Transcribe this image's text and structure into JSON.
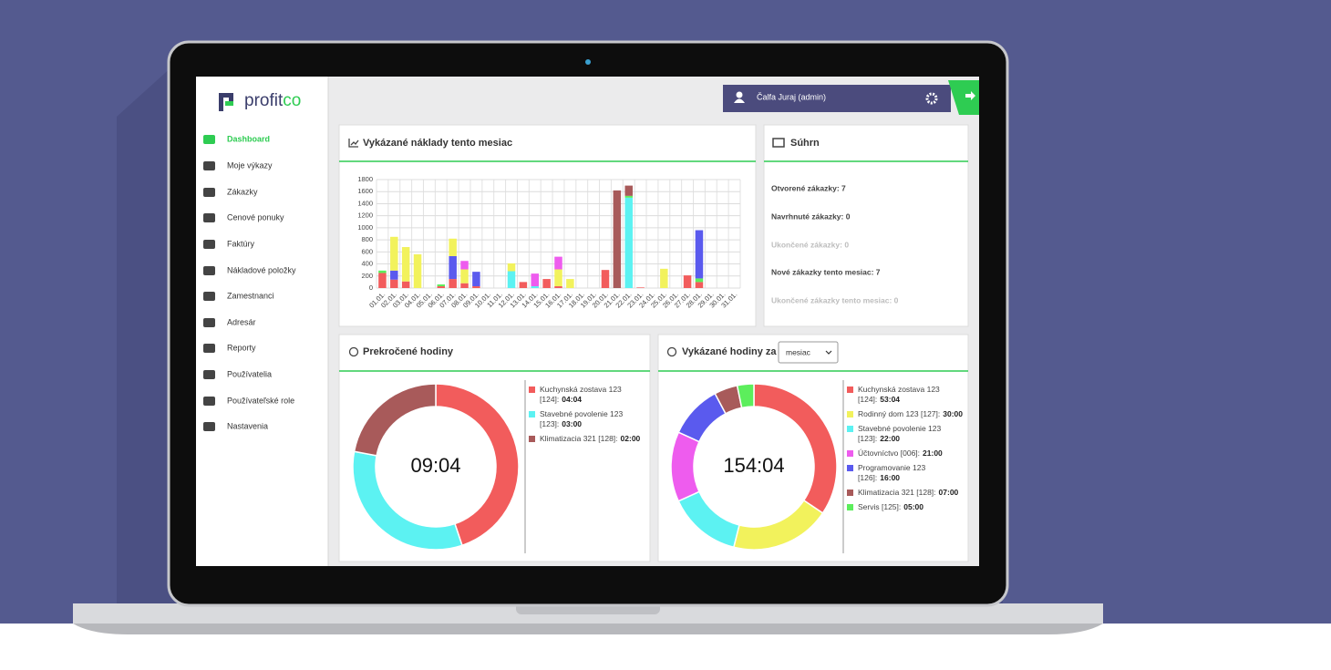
{
  "logo": {
    "brand": "profit",
    "accent": "co"
  },
  "sidebar": {
    "active": 0,
    "items": [
      "Dashboard",
      "Moje výkazy",
      "Zákazky",
      "Cenové ponuky",
      "Faktúry",
      "Nákladové položky",
      "Zamestnanci",
      "Adresár",
      "Reporty",
      "Používatelia",
      "Používateľské role",
      "Nastavenia"
    ]
  },
  "header": {
    "user": "Čalfa Juraj (admin)"
  },
  "summary": {
    "title": "Súhrn",
    "items": [
      {
        "text": "Otvorené zákazky: 7",
        "muted": false
      },
      {
        "text": "Navrhnuté zákazky: 0",
        "muted": false
      },
      {
        "text": "Ukončené zákazky: 0",
        "muted": true
      },
      {
        "text": "Nové zákazky tento mesiac: 7",
        "muted": false
      },
      {
        "text": "Ukončené zákazky tento mesiac: 0",
        "muted": true
      }
    ]
  },
  "chart_data": [
    {
      "type": "stacked-bar",
      "title": "Vykázané náklady tento mesiac",
      "grid": true,
      "categories": [
        "01.01.",
        "02.01.",
        "03.01.",
        "04.01.",
        "05.01.",
        "06.01.",
        "07.01.",
        "08.01.",
        "09.01.",
        "10.01.",
        "11.01.",
        "12.01.",
        "13.01.",
        "14.01.",
        "15.01.",
        "16.01.",
        "17.01.",
        "18.01.",
        "19.01.",
        "20.01.",
        "21.01.",
        "22.01.",
        "23.01.",
        "24.01.",
        "25.01.",
        "26.01.",
        "27.01.",
        "28.01.",
        "29.01.",
        "30.01.",
        "31.01."
      ],
      "ylim": [
        0,
        1800
      ],
      "yticks": [
        0,
        200,
        400,
        600,
        800,
        1000,
        1200,
        1400,
        1600,
        1800
      ],
      "series": [
        {
          "color": "#f25c5c",
          "values": [
            250,
            140,
            110,
            0,
            0,
            30,
            150,
            80,
            30,
            0,
            0,
            0,
            100,
            0,
            150,
            30,
            0,
            0,
            0,
            300,
            0,
            0,
            10,
            0,
            0,
            0,
            210,
            100,
            0,
            0,
            0
          ]
        },
        {
          "color": "#5cf2f2",
          "values": [
            0,
            0,
            0,
            0,
            0,
            0,
            0,
            0,
            0,
            0,
            0,
            280,
            0,
            30,
            0,
            0,
            0,
            0,
            0,
            0,
            0,
            1500,
            0,
            0,
            0,
            0,
            0,
            0,
            0,
            0,
            0
          ]
        },
        {
          "color": "#5cee5c",
          "values": [
            40,
            0,
            0,
            0,
            0,
            30,
            0,
            0,
            0,
            0,
            0,
            0,
            0,
            0,
            0,
            0,
            0,
            0,
            0,
            0,
            0,
            30,
            0,
            0,
            0,
            0,
            0,
            60,
            0,
            0,
            0
          ]
        },
        {
          "color": "#5a5aee",
          "values": [
            0,
            150,
            0,
            0,
            0,
            0,
            380,
            0,
            240,
            0,
            0,
            0,
            0,
            0,
            0,
            0,
            0,
            0,
            0,
            0,
            0,
            0,
            0,
            0,
            0,
            0,
            0,
            800,
            0,
            0,
            0
          ]
        },
        {
          "color": "#f2f25c",
          "values": [
            0,
            560,
            570,
            560,
            0,
            0,
            290,
            230,
            0,
            0,
            0,
            130,
            0,
            0,
            0,
            280,
            150,
            0,
            0,
            0,
            0,
            0,
            0,
            0,
            320,
            0,
            0,
            0,
            0,
            0,
            0
          ]
        },
        {
          "color": "#ee5cee",
          "values": [
            0,
            0,
            0,
            0,
            0,
            0,
            0,
            140,
            0,
            0,
            0,
            0,
            0,
            210,
            0,
            210,
            0,
            0,
            0,
            0,
            0,
            0,
            0,
            0,
            0,
            0,
            0,
            0,
            0,
            0,
            0
          ]
        },
        {
          "color": "#a85a5a",
          "values": [
            0,
            0,
            0,
            0,
            0,
            0,
            0,
            0,
            0,
            0,
            0,
            0,
            0,
            0,
            0,
            0,
            0,
            0,
            0,
            0,
            1620,
            170,
            0,
            0,
            0,
            0,
            0,
            0,
            0,
            0,
            0
          ]
        }
      ]
    },
    {
      "type": "donut",
      "title": "Prekročené hodiny",
      "center_label": "09:04",
      "categories": [
        "Kuchynská zostava 123 [124]:",
        "Stavebné povolenie 123 [123]:",
        "Klimatizacia 321 [128]:"
      ],
      "values": [
        244,
        180,
        120
      ],
      "value_labels": [
        "04:04",
        "03:00",
        "02:00"
      ],
      "colors": [
        "#f25c5c",
        "#5cf2f2",
        "#a85a5a"
      ]
    },
    {
      "type": "donut",
      "title": "Vykázané hodiny za",
      "select_value": "mesiac",
      "center_label": "154:04",
      "categories": [
        "Kuchynská zostava 123 [124]:",
        "Rodinný dom 123 [127]:",
        "Stavebné povolenie 123 [123]:",
        "Účtovníctvo [006]:",
        "Programovanie 123 [126]:",
        "Klimatizacia 321 [128]:",
        "Servis [125]:"
      ],
      "values": [
        3184,
        1800,
        1320,
        1260,
        960,
        420,
        300
      ],
      "value_labels": [
        "53:04",
        "30:00",
        "22:00",
        "21:00",
        "16:00",
        "07:00",
        "05:00"
      ],
      "colors": [
        "#f25c5c",
        "#f2f25c",
        "#5cf2f2",
        "#ee5cee",
        "#5a5aee",
        "#a85a5a",
        "#5cee5c"
      ]
    }
  ]
}
